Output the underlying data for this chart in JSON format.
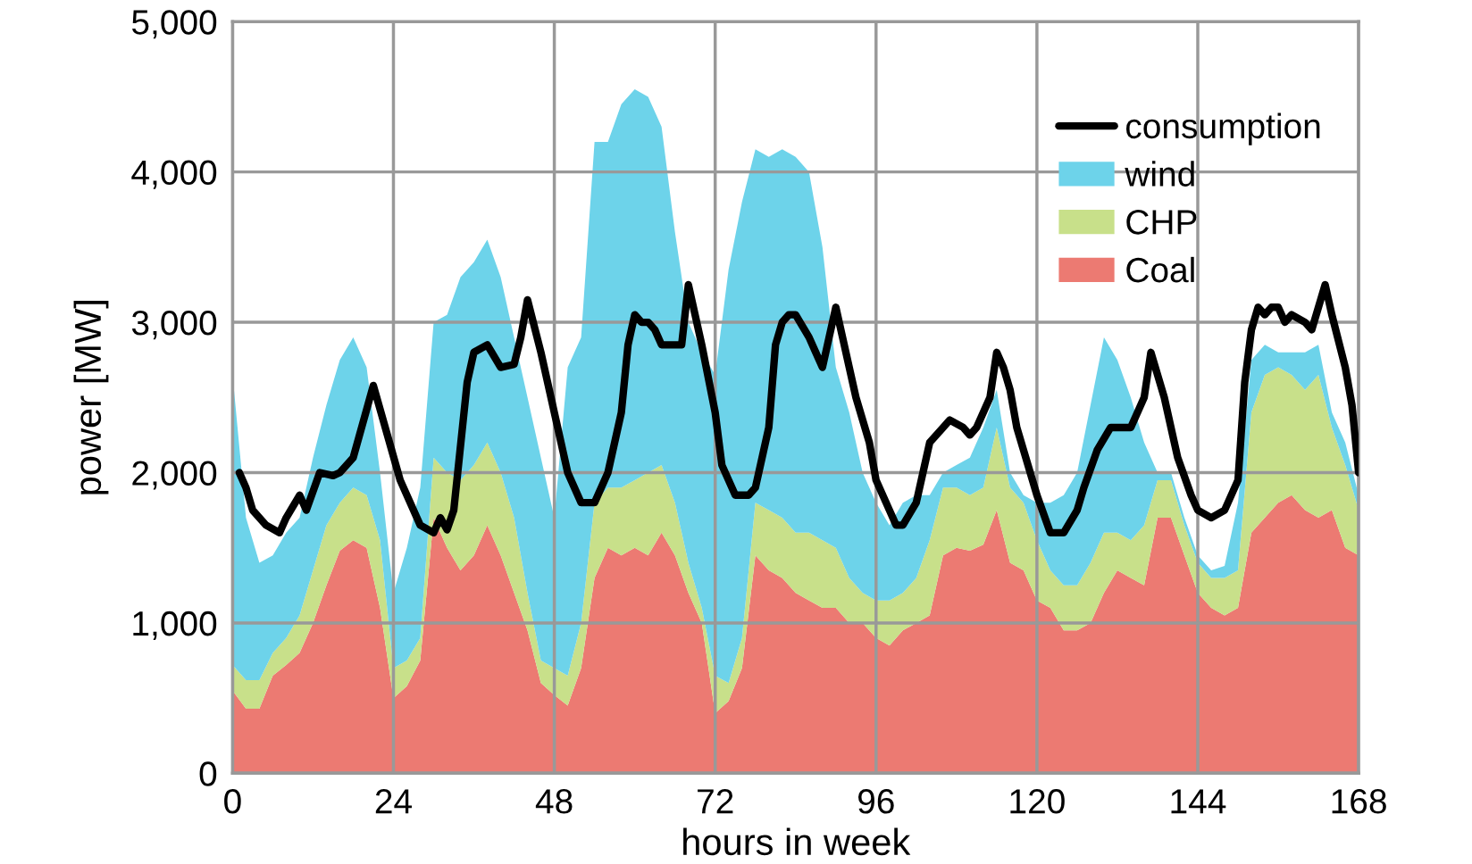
{
  "chart_data": {
    "type": "area",
    "stacked": true,
    "xlabel": "hours in week",
    "ylabel": "power [MW]",
    "x": [
      0,
      2,
      4,
      6,
      8,
      10,
      12,
      14,
      16,
      18,
      20,
      22,
      24,
      26,
      28,
      30,
      32,
      34,
      36,
      38,
      40,
      42,
      44,
      46,
      48,
      50,
      52,
      54,
      56,
      58,
      60,
      62,
      64,
      66,
      68,
      70,
      72,
      74,
      76,
      78,
      80,
      82,
      84,
      86,
      88,
      90,
      92,
      94,
      96,
      98,
      100,
      102,
      104,
      106,
      108,
      110,
      112,
      114,
      116,
      118,
      120,
      122,
      124,
      126,
      128,
      130,
      132,
      134,
      136,
      138,
      140,
      142,
      144,
      146,
      148,
      150,
      152,
      154,
      156,
      158,
      160,
      162,
      164,
      166,
      168
    ],
    "xlim": [
      0,
      168
    ],
    "xticks": [
      0,
      24,
      48,
      72,
      96,
      120,
      144,
      168
    ],
    "ylim": [
      0,
      5000
    ],
    "yticks": [
      {
        "value": 0,
        "label": "0"
      },
      {
        "value": 1000,
        "label": "1,000"
      },
      {
        "value": 2000,
        "label": "2,000"
      },
      {
        "value": 3000,
        "label": "3,000"
      },
      {
        "value": 4000,
        "label": "4,000"
      },
      {
        "value": 5000,
        "label": "5,000"
      }
    ],
    "grid": true,
    "legend": "top right",
    "series": [
      {
        "name": "Coal",
        "color": "#ec7a72",
        "values": [
          550,
          430,
          430,
          650,
          720,
          800,
          1000,
          1250,
          1480,
          1550,
          1500,
          1100,
          500,
          580,
          750,
          1700,
          1500,
          1350,
          1450,
          1650,
          1450,
          1200,
          950,
          600,
          520,
          450,
          700,
          1300,
          1500,
          1450,
          1500,
          1450,
          1600,
          1450,
          1200,
          1000,
          400,
          480,
          700,
          1450,
          1350,
          1300,
          1200,
          1150,
          1100,
          1100,
          1000,
          1000,
          900,
          850,
          950,
          1000,
          1050,
          1450,
          1500,
          1480,
          1520,
          1750,
          1400,
          1350,
          1150,
          1100,
          950,
          950,
          1000,
          1200,
          1350,
          1300,
          1250,
          1700,
          1700,
          1450,
          1200,
          1100,
          1050,
          1100,
          1600,
          1700,
          1800,
          1850,
          1750,
          1700,
          1750,
          1500,
          1450
        ]
      },
      {
        "name": "CHP",
        "color": "#c8e08a",
        "values": [
          170,
          190,
          190,
          150,
          180,
          250,
          350,
          400,
          320,
          350,
          350,
          450,
          200,
          170,
          150,
          400,
          500,
          600,
          600,
          550,
          550,
          500,
          250,
          150,
          180,
          200,
          300,
          500,
          400,
          450,
          450,
          550,
          450,
          350,
          200,
          100,
          250,
          120,
          200,
          350,
          400,
          400,
          400,
          450,
          450,
          400,
          300,
          200,
          250,
          300,
          250,
          300,
          500,
          450,
          400,
          370,
          380,
          550,
          500,
          450,
          400,
          250,
          300,
          300,
          400,
          400,
          250,
          250,
          400,
          250,
          250,
          200,
          200,
          200,
          250,
          250,
          800,
          950,
          900,
          800,
          800,
          950,
          550,
          550,
          300
        ]
      },
      {
        "name": "wind",
        "color": "#6dd3ea",
        "values": [
          1930,
          1080,
          780,
          650,
          700,
          650,
          750,
          800,
          950,
          1000,
          850,
          450,
          500,
          750,
          1000,
          900,
          1050,
          1350,
          1350,
          1350,
          1300,
          1200,
          1300,
          1350,
          1000,
          2050,
          1900,
          2400,
          2300,
          2550,
          2600,
          2500,
          2250,
          1800,
          1600,
          1700,
          2000,
          2750,
          2900,
          2350,
          2350,
          2450,
          2500,
          2400,
          1950,
          1200,
          1100,
          800,
          650,
          500,
          600,
          550,
          300,
          100,
          150,
          250,
          400,
          250,
          100,
          50,
          250,
          450,
          600,
          750,
          1050,
          1300,
          1150,
          950,
          550,
          50,
          50,
          50,
          50,
          50,
          80,
          450,
          350,
          200,
          100,
          150,
          250,
          200,
          100,
          150,
          100
        ]
      },
      {
        "name": "consumption",
        "type": "line",
        "color": "#000000",
        "line_style": "solid",
        "x": [
          1,
          2,
          3,
          5,
          7,
          8,
          10,
          11,
          13,
          15,
          16,
          18,
          21,
          25,
          28,
          30,
          31,
          32,
          33,
          35,
          36,
          38,
          40,
          42,
          43,
          44,
          46,
          48,
          50,
          52,
          54,
          56,
          58,
          59,
          60,
          61,
          62,
          63,
          64,
          66,
          67,
          68,
          69,
          70,
          72,
          73,
          75,
          77,
          78,
          80,
          81,
          82,
          83,
          84,
          86,
          87,
          88,
          89,
          90,
          91,
          92,
          93,
          95,
          96,
          98,
          99,
          100,
          102,
          103,
          104,
          106,
          107,
          109,
          110,
          111,
          113,
          114,
          115,
          116,
          117,
          120,
          122,
          124,
          126,
          127,
          129,
          131,
          133,
          134,
          136,
          137,
          139,
          141,
          143,
          144,
          146,
          148,
          150,
          151,
          152,
          153,
          154,
          155,
          156,
          157,
          158,
          160,
          161,
          163,
          164,
          166,
          167,
          168
        ],
        "values": [
          2000,
          1900,
          1750,
          1650,
          1600,
          1700,
          1850,
          1750,
          2000,
          1980,
          2000,
          2100,
          2580,
          1950,
          1650,
          1600,
          1700,
          1620,
          1750,
          2600,
          2800,
          2850,
          2700,
          2720,
          2900,
          3150,
          2800,
          2400,
          2000,
          1800,
          1800,
          2000,
          2400,
          2850,
          3050,
          3000,
          3000,
          2950,
          2850,
          2850,
          2850,
          3250,
          3050,
          2850,
          2400,
          2050,
          1850,
          1850,
          1900,
          2300,
          2850,
          3000,
          3050,
          3050,
          2900,
          2800,
          2700,
          2900,
          3100,
          2900,
          2700,
          2500,
          2200,
          1950,
          1750,
          1650,
          1650,
          1800,
          2000,
          2200,
          2300,
          2350,
          2300,
          2250,
          2300,
          2500,
          2800,
          2700,
          2550,
          2300,
          1850,
          1600,
          1600,
          1750,
          1900,
          2150,
          2300,
          2300,
          2300,
          2500,
          2800,
          2500,
          2100,
          1850,
          1750,
          1700,
          1750,
          1950,
          2600,
          2950,
          3100,
          3050,
          3100,
          3100,
          3000,
          3050,
          3000,
          2950,
          3250,
          3050,
          2700,
          2450,
          2000
        ]
      }
    ]
  }
}
